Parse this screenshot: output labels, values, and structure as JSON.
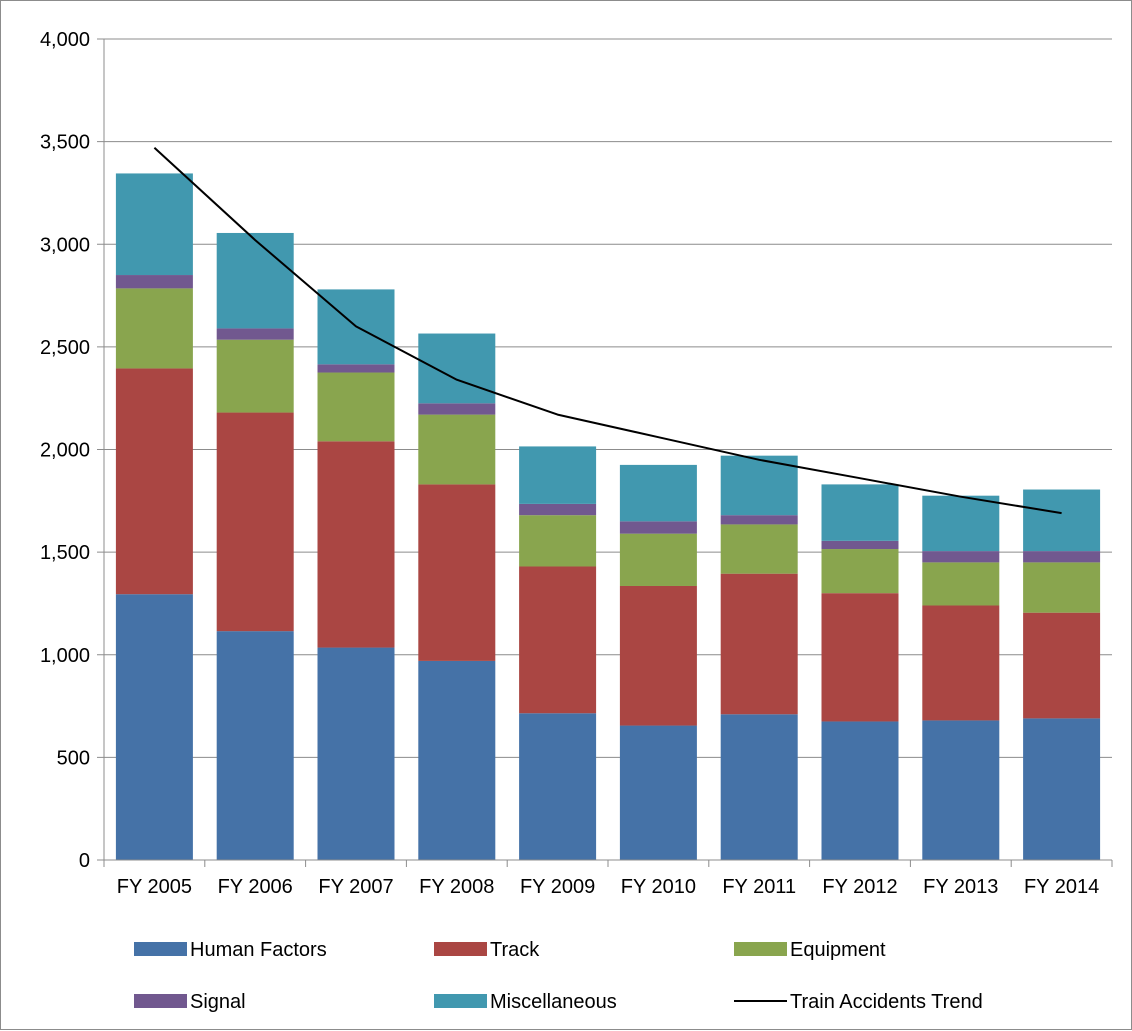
{
  "chart_data": {
    "type": "bar",
    "stacked": true,
    "title": "",
    "xlabel": "",
    "ylabel": "",
    "categories": [
      "FY 2005",
      "FY 2006",
      "FY 2007",
      "FY 2008",
      "FY 2009",
      "FY 2010",
      "FY 2011",
      "FY 2012",
      "FY 2013",
      "FY 2014"
    ],
    "ylim": [
      0,
      4000
    ],
    "yticks": [
      0,
      500,
      1000,
      1500,
      2000,
      2500,
      3000,
      3500,
      4000
    ],
    "ytick_labels": [
      "0",
      "500",
      "1,000",
      "1,500",
      "2,000",
      "2,500",
      "3,000",
      "3,500",
      "4,000"
    ],
    "grid": true,
    "legend_position": "bottom",
    "series": [
      {
        "name": "Human Factors",
        "color": "#4572a7",
        "values": [
          1295,
          1115,
          1035,
          970,
          715,
          655,
          710,
          675,
          680,
          690
        ]
      },
      {
        "name": "Track",
        "color": "#aa4643",
        "values": [
          1100,
          1065,
          1005,
          860,
          715,
          680,
          685,
          625,
          560,
          515
        ]
      },
      {
        "name": "Equipment",
        "color": "#89a54e",
        "values": [
          390,
          355,
          335,
          340,
          250,
          255,
          240,
          215,
          210,
          245
        ]
      },
      {
        "name": "Signal",
        "color": "#71588f",
        "values": [
          65,
          55,
          40,
          55,
          55,
          60,
          45,
          40,
          55,
          55
        ]
      },
      {
        "name": "Miscellaneous",
        "color": "#4198af",
        "values": [
          495,
          465,
          365,
          340,
          280,
          275,
          290,
          275,
          270,
          300
        ]
      }
    ],
    "trend": {
      "name": "Train Accidents Trend",
      "color": "#000000",
      "type": "log",
      "values": [
        3470,
        3020,
        2600,
        2340,
        2170,
        2060,
        1950,
        1860,
        1770,
        1690
      ]
    }
  }
}
